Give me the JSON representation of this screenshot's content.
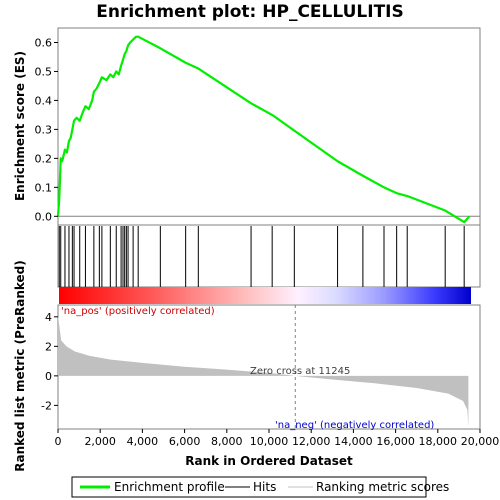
{
  "chart_data": {
    "type": "line",
    "title": "Enrichment plot: HP_CELLULITIS",
    "xlabel": "Rank in Ordered Dataset",
    "top_ylabel": "Enrichment score (ES)",
    "bottom_ylabel": "Ranked list metric (PreRanked)",
    "xlim": [
      0,
      20000
    ],
    "x_ticks": [
      "0",
      "2,000",
      "4,000",
      "6,000",
      "8,000",
      "10,000",
      "12,000",
      "14,000",
      "16,000",
      "18,000",
      "20,000"
    ],
    "x_tick_values": [
      0,
      2000,
      4000,
      6000,
      8000,
      10000,
      12000,
      14000,
      16000,
      18000,
      20000
    ],
    "es_ylim": [
      -0.03,
      0.65
    ],
    "es_ticks": [
      "0.0",
      "0.1",
      "0.2",
      "0.3",
      "0.4",
      "0.5",
      "0.6"
    ],
    "es_tick_values": [
      0.0,
      0.1,
      0.2,
      0.3,
      0.4,
      0.5,
      0.6
    ],
    "metric_ylim": [
      -3.6,
      4.8
    ],
    "metric_ticks": [
      "4",
      "2",
      "0",
      "-2"
    ],
    "metric_tick_values": [
      4,
      2,
      0,
      -2
    ],
    "series": [
      {
        "name": "Enrichment profile",
        "color": "#00ee00",
        "x": [
          0,
          60,
          130,
          200,
          330,
          420,
          520,
          600,
          680,
          760,
          880,
          1030,
          1180,
          1300,
          1460,
          1620,
          1700,
          1820,
          1960,
          2080,
          2300,
          2480,
          2620,
          2760,
          2880,
          2990,
          3080,
          3160,
          3240,
          3320,
          3420,
          3560,
          3700,
          3800,
          4850,
          6050,
          6650,
          9150,
          10150,
          13250,
          14450,
          15450,
          16050,
          16550,
          18350,
          19250,
          19500
        ],
        "y": [
          0.0,
          0.06,
          0.2,
          0.19,
          0.23,
          0.22,
          0.26,
          0.27,
          0.3,
          0.33,
          0.34,
          0.33,
          0.36,
          0.38,
          0.37,
          0.4,
          0.43,
          0.44,
          0.46,
          0.48,
          0.47,
          0.49,
          0.48,
          0.5,
          0.49,
          0.52,
          0.54,
          0.56,
          0.57,
          0.59,
          0.6,
          0.61,
          0.62,
          0.62,
          0.58,
          0.53,
          0.51,
          0.39,
          0.35,
          0.19,
          0.14,
          0.1,
          0.08,
          0.07,
          0.02,
          -0.02,
          0.0
        ]
      }
    ],
    "hits": [
      60,
      130,
      330,
      520,
      680,
      760,
      1030,
      1300,
      1700,
      1960,
      2080,
      2480,
      2760,
      2990,
      3080,
      3160,
      3240,
      3320,
      3560,
      3800,
      4850,
      6050,
      6650,
      9150,
      10150,
      11200,
      13250,
      14450,
      15450,
      16050,
      16550,
      18350,
      19250
    ],
    "metric_profile": {
      "x": [
        0,
        150,
        400,
        800,
        1500,
        2500,
        4000,
        6000,
        8000,
        10000,
        11245,
        13000,
        15000,
        17000,
        18500,
        19200,
        19400,
        19450
      ],
      "y": [
        4.1,
        2.4,
        2.0,
        1.65,
        1.35,
        1.1,
        0.88,
        0.62,
        0.42,
        0.2,
        0.0,
        -0.25,
        -0.5,
        -0.82,
        -1.2,
        -1.7,
        -2.3,
        -3.5
      ]
    },
    "pos_label": "'na_pos' (positively correlated)",
    "neg_label": "'na_neg' (negatively correlated)",
    "zero_cross_label": "Zero cross at 11245",
    "zero_cross": 11245,
    "colors": {
      "profile": "#00ee00",
      "hit": "#000000",
      "metric_fill": "#c0c0c0",
      "pos_text": "#cc0000",
      "neg_text": "#0000cc",
      "bar_red": "#ff0000",
      "bar_blue": "#0000cc"
    },
    "legend": {
      "items": [
        "Enrichment profile",
        "Hits",
        "Ranking metric scores"
      ],
      "position": "bottom"
    }
  }
}
